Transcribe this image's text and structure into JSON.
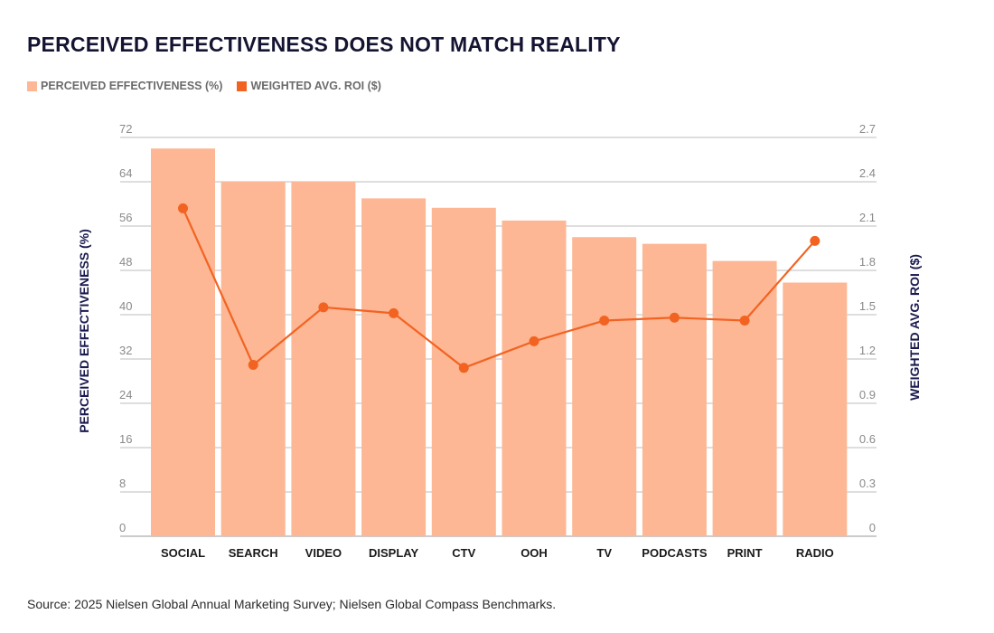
{
  "title": "PERCEIVED EFFECTIVENESS DOES NOT MATCH REALITY",
  "legend": {
    "bar_label": "PERCEIVED EFFECTIVENESS (%)",
    "line_label": "WEIGHTED AVG. ROI ($)"
  },
  "source": "Source: 2025 Nielsen Global Annual Marketing Survey; Nielsen Global Compass Benchmarks.",
  "colors": {
    "bar": "#FDB794",
    "line": "#F26322",
    "axis_title": "#1A1A4E",
    "grid": "#BDBDBD"
  },
  "chart_data": {
    "type": "bar",
    "title": "PERCEIVED EFFECTIVENESS DOES NOT MATCH REALITY",
    "categories": [
      "SOCIAL",
      "SEARCH",
      "VIDEO",
      "DISPLAY",
      "CTV",
      "OOH",
      "TV",
      "PODCASTS",
      "PRINT",
      "RADIO"
    ],
    "series": [
      {
        "name": "PERCEIVED EFFECTIVENESS (%)",
        "type": "bar",
        "axis": "left",
        "values": [
          70,
          64,
          64,
          61,
          59.3,
          57,
          54,
          52.8,
          49.7,
          45.8
        ]
      },
      {
        "name": "WEIGHTED AVG. ROI ($)",
        "type": "line",
        "axis": "right",
        "values": [
          2.22,
          1.16,
          1.55,
          1.51,
          1.14,
          1.32,
          1.46,
          1.48,
          1.46,
          2.0
        ]
      }
    ],
    "ylabel": "PERCEIVED EFFECTIVENESS (%)",
    "y2label": "WEIGHTED AVG. ROI ($)",
    "ylim": [
      0,
      72
    ],
    "y2lim": [
      0,
      2.7
    ],
    "yticks": [
      "0",
      "8",
      "16",
      "24",
      "32",
      "40",
      "48",
      "56",
      "64",
      "72"
    ],
    "y2ticks": [
      "0",
      "0.3",
      "0.6",
      "0.9",
      "1.2",
      "1.5",
      "1.8",
      "2.1",
      "2.4",
      "2.7"
    ],
    "grid": true,
    "legend_position": "top-left"
  }
}
